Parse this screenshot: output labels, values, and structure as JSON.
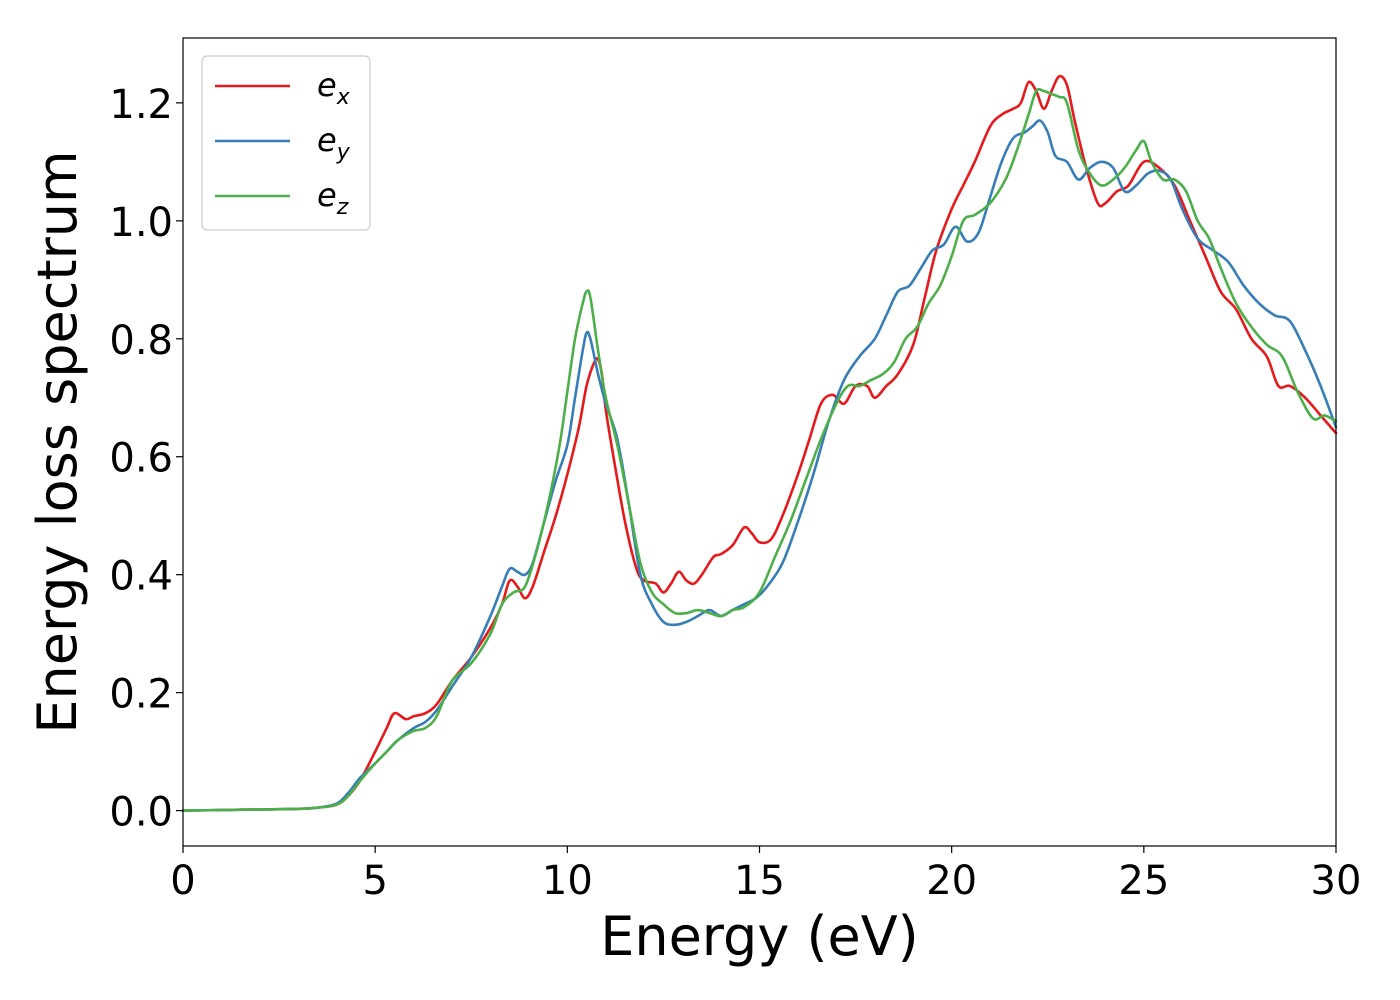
{
  "chart_data": {
    "type": "line",
    "title": "",
    "xlabel": "Energy (eV)",
    "ylabel": "Energy loss spectrum",
    "xlim": [
      0,
      30
    ],
    "ylim": [
      -0.06,
      1.31
    ],
    "xticks": [
      0,
      5,
      10,
      15,
      20,
      25,
      30
    ],
    "xtick_labels": [
      "0",
      "5",
      "10",
      "15",
      "20",
      "25",
      "30"
    ],
    "yticks": [
      0.0,
      0.2,
      0.4,
      0.6,
      0.8,
      1.0,
      1.2
    ],
    "ytick_labels": [
      "0.0",
      "0.2",
      "0.4",
      "0.6",
      "0.8",
      "1.0",
      "1.2"
    ],
    "grid": false,
    "legend_position": "top-left",
    "series": [
      {
        "name": "e_x",
        "legend_main": "e",
        "legend_sub": "x",
        "color": "#e41a1c",
        "x": [
          0,
          1,
          2,
          3,
          3.5,
          4,
          4.3,
          4.6,
          5,
          5.3,
          5.5,
          5.8,
          6,
          6.3,
          6.6,
          7,
          7.5,
          8,
          8.3,
          8.5,
          8.7,
          8.9,
          9.1,
          9.4,
          9.7,
          10,
          10.3,
          10.5,
          10.7,
          10.8,
          10.9,
          11,
          11.2,
          11.5,
          11.8,
          12,
          12.3,
          12.5,
          12.7,
          12.9,
          13.1,
          13.3,
          13.5,
          13.8,
          14,
          14.3,
          14.6,
          14.8,
          15,
          15.3,
          15.6,
          16,
          16.3,
          16.6,
          16.9,
          17.2,
          17.5,
          17.8,
          18,
          18.3,
          18.6,
          19,
          19.3,
          19.6,
          20,
          20.3,
          20.6,
          21,
          21.3,
          21.6,
          21.8,
          22,
          22.2,
          22.4,
          22.6,
          22.8,
          23,
          23.2,
          23.5,
          23.8,
          24,
          24.3,
          24.6,
          25,
          25.4,
          25.8,
          26.2,
          26.6,
          27,
          27.4,
          27.8,
          28.2,
          28.5,
          28.8,
          29.2,
          29.6,
          30
        ],
        "y": [
          0,
          0.001,
          0.002,
          0.003,
          0.005,
          0.01,
          0.025,
          0.05,
          0.1,
          0.14,
          0.165,
          0.155,
          0.16,
          0.165,
          0.18,
          0.22,
          0.26,
          0.31,
          0.35,
          0.39,
          0.38,
          0.36,
          0.38,
          0.44,
          0.5,
          0.57,
          0.65,
          0.72,
          0.76,
          0.765,
          0.74,
          0.68,
          0.6,
          0.49,
          0.41,
          0.39,
          0.385,
          0.37,
          0.385,
          0.405,
          0.39,
          0.385,
          0.4,
          0.43,
          0.435,
          0.45,
          0.48,
          0.47,
          0.455,
          0.46,
          0.5,
          0.57,
          0.63,
          0.69,
          0.705,
          0.69,
          0.72,
          0.72,
          0.7,
          0.72,
          0.74,
          0.79,
          0.87,
          0.95,
          1.02,
          1.06,
          1.1,
          1.16,
          1.18,
          1.19,
          1.2,
          1.235,
          1.22,
          1.19,
          1.22,
          1.245,
          1.23,
          1.17,
          1.09,
          1.03,
          1.03,
          1.05,
          1.06,
          1.1,
          1.09,
          1.06,
          1.0,
          0.94,
          0.88,
          0.85,
          0.8,
          0.77,
          0.72,
          0.72,
          0.7,
          0.67,
          0.64
        ]
      },
      {
        "name": "e_y",
        "legend_main": "e",
        "legend_sub": "y",
        "color": "#377eb8",
        "x": [
          0,
          1,
          2,
          3,
          3.5,
          4,
          4.3,
          4.6,
          5,
          5.3,
          5.6,
          6,
          6.3,
          6.6,
          7,
          7.5,
          8,
          8.3,
          8.5,
          8.7,
          8.9,
          9.1,
          9.4,
          9.7,
          10,
          10.2,
          10.4,
          10.5,
          10.6,
          10.8,
          11,
          11.3,
          11.6,
          11.9,
          12.2,
          12.5,
          12.8,
          13.1,
          13.4,
          13.7,
          14,
          14.3,
          14.6,
          14.9,
          15.2,
          15.6,
          16,
          16.4,
          16.8,
          17.2,
          17.6,
          18,
          18.3,
          18.6,
          18.9,
          19.2,
          19.5,
          19.8,
          20.1,
          20.4,
          20.7,
          21,
          21.3,
          21.6,
          21.9,
          22.1,
          22.3,
          22.5,
          22.7,
          23,
          23.3,
          23.6,
          23.9,
          24.2,
          24.5,
          24.8,
          25.1,
          25.4,
          25.7,
          26,
          26.4,
          26.8,
          27.2,
          27.6,
          28,
          28.4,
          28.8,
          29.2,
          29.6,
          30
        ],
        "y": [
          0,
          0.001,
          0.002,
          0.003,
          0.005,
          0.012,
          0.03,
          0.055,
          0.08,
          0.1,
          0.12,
          0.14,
          0.15,
          0.17,
          0.21,
          0.26,
          0.33,
          0.38,
          0.41,
          0.405,
          0.4,
          0.42,
          0.49,
          0.56,
          0.62,
          0.7,
          0.78,
          0.81,
          0.8,
          0.74,
          0.69,
          0.63,
          0.52,
          0.4,
          0.35,
          0.32,
          0.315,
          0.32,
          0.33,
          0.34,
          0.33,
          0.34,
          0.35,
          0.36,
          0.38,
          0.42,
          0.49,
          0.57,
          0.66,
          0.73,
          0.77,
          0.8,
          0.84,
          0.88,
          0.89,
          0.92,
          0.95,
          0.96,
          0.99,
          0.965,
          0.98,
          1.04,
          1.1,
          1.14,
          1.15,
          1.16,
          1.17,
          1.15,
          1.11,
          1.1,
          1.07,
          1.09,
          1.1,
          1.09,
          1.05,
          1.06,
          1.08,
          1.085,
          1.07,
          1.02,
          0.97,
          0.95,
          0.93,
          0.89,
          0.86,
          0.84,
          0.83,
          0.78,
          0.72,
          0.65
        ]
      },
      {
        "name": "e_z",
        "legend_main": "e",
        "legend_sub": "z",
        "color": "#4daf4a",
        "x": [
          0,
          1,
          2,
          3,
          3.5,
          4,
          4.3,
          4.6,
          5,
          5.3,
          5.6,
          6,
          6.3,
          6.6,
          7,
          7.5,
          8,
          8.3,
          8.6,
          8.9,
          9.2,
          9.5,
          9.8,
          10,
          10.2,
          10.4,
          10.5,
          10.6,
          10.8,
          11,
          11.3,
          11.6,
          11.9,
          12.2,
          12.5,
          12.8,
          13.1,
          13.4,
          13.7,
          14,
          14.3,
          14.6,
          15,
          15.4,
          15.8,
          16.2,
          16.6,
          17,
          17.3,
          17.6,
          17.9,
          18.2,
          18.5,
          18.8,
          19.1,
          19.4,
          19.7,
          20,
          20.3,
          20.6,
          21,
          21.4,
          21.7,
          22,
          22.2,
          22.4,
          22.6,
          22.8,
          23,
          23.3,
          23.6,
          23.9,
          24.2,
          24.5,
          24.8,
          25,
          25.2,
          25.5,
          25.8,
          26.1,
          26.4,
          26.7,
          27,
          27.4,
          27.8,
          28.2,
          28.6,
          29,
          29.4,
          29.7,
          30
        ],
        "y": [
          0,
          0.001,
          0.002,
          0.003,
          0.005,
          0.01,
          0.025,
          0.05,
          0.08,
          0.1,
          0.12,
          0.135,
          0.14,
          0.16,
          0.22,
          0.25,
          0.3,
          0.35,
          0.37,
          0.38,
          0.44,
          0.52,
          0.62,
          0.71,
          0.8,
          0.86,
          0.88,
          0.87,
          0.78,
          0.7,
          0.62,
          0.52,
          0.42,
          0.37,
          0.35,
          0.335,
          0.335,
          0.34,
          0.335,
          0.33,
          0.34,
          0.345,
          0.37,
          0.43,
          0.49,
          0.56,
          0.63,
          0.69,
          0.72,
          0.72,
          0.73,
          0.74,
          0.76,
          0.8,
          0.82,
          0.86,
          0.89,
          0.94,
          1.0,
          1.01,
          1.03,
          1.07,
          1.12,
          1.18,
          1.22,
          1.22,
          1.215,
          1.21,
          1.2,
          1.12,
          1.08,
          1.06,
          1.07,
          1.09,
          1.12,
          1.135,
          1.1,
          1.07,
          1.07,
          1.05,
          1.0,
          0.97,
          0.92,
          0.86,
          0.82,
          0.79,
          0.77,
          0.71,
          0.665,
          0.67,
          0.66
        ]
      }
    ]
  }
}
